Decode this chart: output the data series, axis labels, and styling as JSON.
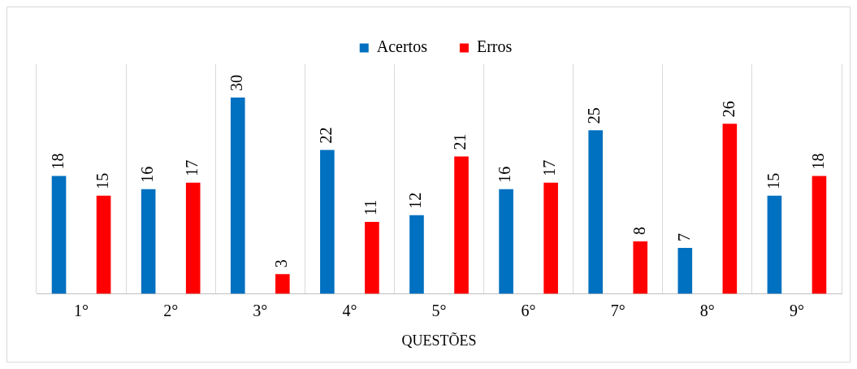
{
  "chart_data": {
    "type": "bar",
    "xlabel": "QUESTÕES",
    "categories": [
      "1°",
      "2°",
      "3°",
      "4°",
      "5°",
      "6°",
      "7°",
      "8°",
      "9°"
    ],
    "series": [
      {
        "name": "Acertos",
        "color": "#0070c0",
        "values": [
          18,
          16,
          30,
          22,
          12,
          16,
          25,
          7,
          15
        ]
      },
      {
        "name": "Erros",
        "color": "#ff0000",
        "values": [
          15,
          17,
          3,
          11,
          21,
          17,
          8,
          26,
          18
        ]
      }
    ],
    "relative": false,
    "data_labels": true,
    "grid": "x",
    "legend": "top"
  }
}
